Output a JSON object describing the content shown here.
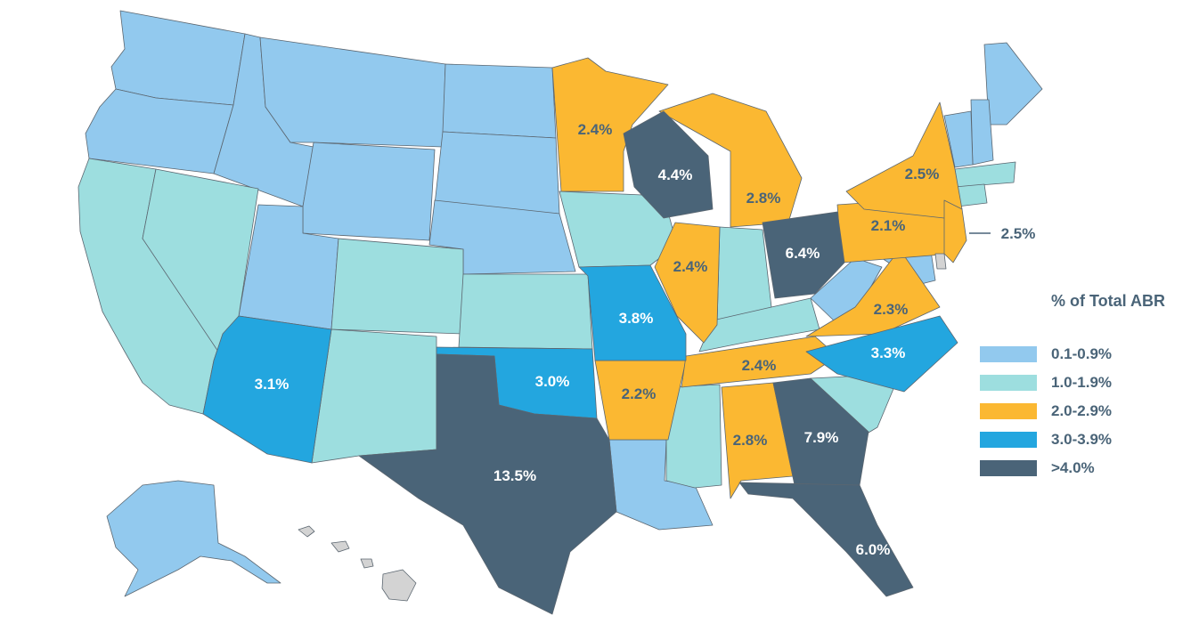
{
  "legend": {
    "title": "% of Total ABR",
    "items": [
      {
        "label": "0.1-0.9%",
        "color": "#92c9ee"
      },
      {
        "label": "1.0-1.9%",
        "color": "#9ddedf"
      },
      {
        "label": "2.0-2.9%",
        "color": "#fbb832"
      },
      {
        "label": "3.0-3.9%",
        "color": "#23a6df"
      },
      {
        "label": ">4.0%",
        "color": "#4a6478"
      }
    ]
  },
  "colors": {
    "light_blue": "#92c9ee",
    "teal": "#9ddedf",
    "orange": "#fbb832",
    "blue": "#23a6df",
    "dark": "#4a6478",
    "gray": "#d3d3d3"
  },
  "states": {
    "TX": {
      "name": "Texas",
      "value": "13.5%"
    },
    "GA": {
      "name": "Georgia",
      "value": "7.9%"
    },
    "OH": {
      "name": "Ohio",
      "value": "6.4%"
    },
    "FL": {
      "name": "Florida",
      "value": "6.0%"
    },
    "WI": {
      "name": "Wisconsin",
      "value": "4.4%"
    },
    "MO": {
      "name": "Missouri",
      "value": "3.8%"
    },
    "NC": {
      "name": "North Carolina",
      "value": "3.3%"
    },
    "AZ": {
      "name": "Arizona",
      "value": "3.1%"
    },
    "OK": {
      "name": "Oklahoma",
      "value": "3.0%"
    },
    "NY": {
      "name": "New York",
      "value": "2.5%"
    },
    "NJ": {
      "name": "New Jersey",
      "value": "2.5%"
    },
    "MN": {
      "name": "Minnesota",
      "value": "2.4%"
    },
    "IL": {
      "name": "Illinois",
      "value": "2.4%"
    },
    "TN": {
      "name": "Tennessee",
      "value": "2.4%"
    },
    "VA": {
      "name": "Virginia",
      "value": "2.3%"
    },
    "AR": {
      "name": "Arkansas",
      "value": "2.2%"
    },
    "PA": {
      "name": "Pennsylvania",
      "value": "2.1%"
    },
    "MI": {
      "name": "Michigan",
      "value": "2.8%"
    },
    "AL": {
      "name": "Alabama",
      "value": "2.8%"
    }
  }
}
